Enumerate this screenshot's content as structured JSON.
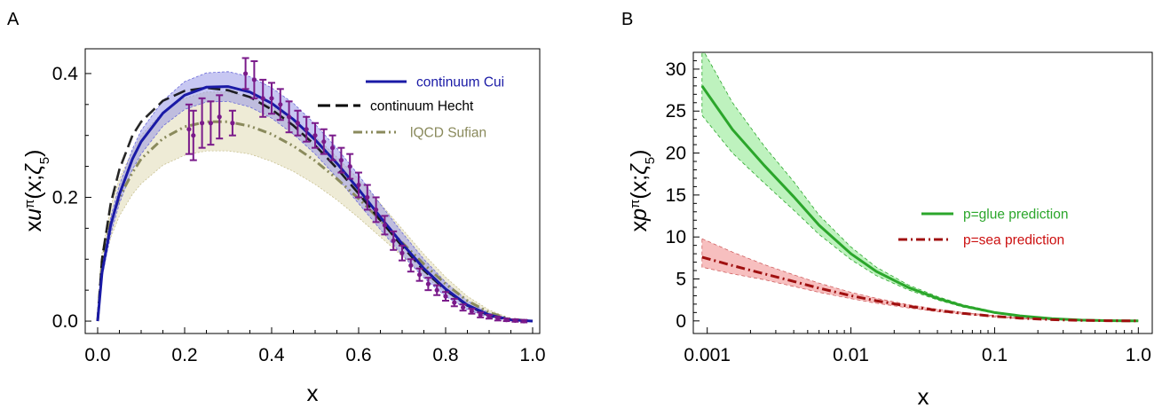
{
  "colors": {
    "cui": "#1a1aa6",
    "cui_band": "#8f8fe6",
    "hecht": "#000000",
    "sufian": "#8a8a5c",
    "sufian_band": "#e8e4c8",
    "lattice": "#7a1a8a",
    "glue": "#2ba62b",
    "glue_band": "#7ee67e",
    "sea": "#a01010",
    "sea_band": "#f08a8a"
  },
  "panels": {
    "A": {
      "letter": "A"
    },
    "B": {
      "letter": "B"
    }
  },
  "chart_data": [
    {
      "type": "line",
      "panel": "A",
      "xlabel": "x",
      "ylabel_parts": {
        "a": "x",
        "b": "u",
        "c": "π",
        "d": "(x;",
        "e": "ζ",
        "f": "5",
        "g": ")"
      },
      "xlim": [
        0,
        1
      ],
      "ylim": [
        -0.02,
        0.44
      ],
      "x_ticks": [
        0.0,
        0.2,
        0.4,
        0.6,
        0.8,
        1.0
      ],
      "x_tick_labels": [
        "0.0",
        "0.2",
        "0.4",
        "0.6",
        "0.8",
        "1.0"
      ],
      "y_ticks": [
        0.0,
        0.2,
        0.4
      ],
      "y_tick_labels": [
        "0.0",
        "0.2",
        "0.4"
      ],
      "legend_position": "top-right",
      "series": [
        {
          "name": "continuum Cui",
          "style": "solid",
          "x": [
            0.0,
            0.01,
            0.03,
            0.05,
            0.08,
            0.1,
            0.15,
            0.2,
            0.25,
            0.3,
            0.35,
            0.4,
            0.45,
            0.5,
            0.55,
            0.6,
            0.65,
            0.7,
            0.75,
            0.8,
            0.85,
            0.9,
            0.95,
            1.0
          ],
          "values": [
            0.0,
            0.078,
            0.155,
            0.205,
            0.262,
            0.29,
            0.336,
            0.365,
            0.378,
            0.379,
            0.37,
            0.352,
            0.326,
            0.293,
            0.255,
            0.213,
            0.168,
            0.125,
            0.085,
            0.052,
            0.026,
            0.01,
            0.002,
            0.0
          ],
          "band_low": [
            0.0,
            0.07,
            0.14,
            0.19,
            0.245,
            0.27,
            0.315,
            0.342,
            0.354,
            0.355,
            0.346,
            0.328,
            0.302,
            0.27,
            0.232,
            0.19,
            0.148,
            0.107,
            0.07,
            0.04,
            0.019,
            0.006,
            0.001,
            0.0
          ],
          "band_high": [
            0.0,
            0.086,
            0.168,
            0.22,
            0.278,
            0.308,
            0.356,
            0.387,
            0.401,
            0.403,
            0.395,
            0.377,
            0.352,
            0.318,
            0.279,
            0.236,
            0.189,
            0.143,
            0.1,
            0.063,
            0.033,
            0.013,
            0.003,
            0.0
          ]
        },
        {
          "name": "continuum Hecht",
          "style": "dashed",
          "x": [
            0.0,
            0.01,
            0.03,
            0.05,
            0.08,
            0.1,
            0.15,
            0.2,
            0.25,
            0.3,
            0.35,
            0.4,
            0.45,
            0.5,
            0.55,
            0.6,
            0.65,
            0.7,
            0.75,
            0.8,
            0.85,
            0.9,
            0.95,
            1.0
          ],
          "values": [
            0.0,
            0.1,
            0.19,
            0.245,
            0.3,
            0.322,
            0.356,
            0.372,
            0.377,
            0.373,
            0.362,
            0.342,
            0.316,
            0.284,
            0.247,
            0.206,
            0.163,
            0.121,
            0.082,
            0.05,
            0.025,
            0.009,
            0.002,
            0.0
          ]
        },
        {
          "name": "lQCD Sufian",
          "style": "dash-dot",
          "x": [
            0.0,
            0.01,
            0.03,
            0.05,
            0.08,
            0.1,
            0.15,
            0.2,
            0.25,
            0.3,
            0.35,
            0.4,
            0.45,
            0.5,
            0.55,
            0.6,
            0.65,
            0.7,
            0.75,
            0.8,
            0.85,
            0.9,
            0.95,
            1.0
          ],
          "values": [
            0.0,
            0.095,
            0.16,
            0.2,
            0.24,
            0.262,
            0.295,
            0.314,
            0.322,
            0.322,
            0.315,
            0.302,
            0.283,
            0.259,
            0.23,
            0.198,
            0.163,
            0.127,
            0.092,
            0.06,
            0.033,
            0.014,
            0.003,
            0.0
          ],
          "band_low": [
            0.0,
            0.08,
            0.135,
            0.17,
            0.205,
            0.222,
            0.252,
            0.268,
            0.275,
            0.275,
            0.27,
            0.258,
            0.242,
            0.221,
            0.196,
            0.167,
            0.136,
            0.105,
            0.074,
            0.046,
            0.024,
            0.009,
            0.002,
            0.0
          ],
          "band_high": [
            0.0,
            0.11,
            0.185,
            0.23,
            0.275,
            0.3,
            0.338,
            0.36,
            0.37,
            0.37,
            0.362,
            0.347,
            0.325,
            0.298,
            0.265,
            0.229,
            0.19,
            0.149,
            0.108,
            0.071,
            0.04,
            0.018,
            0.004,
            0.0
          ]
        },
        {
          "type": "scatter-errorbars",
          "x": [
            0.21,
            0.22,
            0.24,
            0.26,
            0.28,
            0.31,
            0.34,
            0.36,
            0.38,
            0.4,
            0.42,
            0.44,
            0.46,
            0.48,
            0.5,
            0.52,
            0.54,
            0.56,
            0.58,
            0.6,
            0.62,
            0.64,
            0.66,
            0.68,
            0.7,
            0.72,
            0.74,
            0.76,
            0.78,
            0.8,
            0.82,
            0.84,
            0.86,
            0.88,
            0.9,
            0.92,
            0.94,
            0.96,
            0.98
          ],
          "values": [
            0.31,
            0.3,
            0.32,
            0.32,
            0.33,
            0.32,
            0.4,
            0.39,
            0.36,
            0.36,
            0.35,
            0.33,
            0.32,
            0.31,
            0.3,
            0.29,
            0.28,
            0.26,
            0.25,
            0.22,
            0.2,
            0.18,
            0.155,
            0.13,
            0.11,
            0.09,
            0.075,
            0.06,
            0.05,
            0.04,
            0.03,
            0.022,
            0.016,
            0.01,
            0.007,
            0.004,
            0.002,
            0.001,
            0.0
          ],
          "errors": [
            0.04,
            0.04,
            0.04,
            0.035,
            0.035,
            0.02,
            0.025,
            0.03,
            0.03,
            0.025,
            0.025,
            0.025,
            0.02,
            0.02,
            0.02,
            0.02,
            0.02,
            0.02,
            0.02,
            0.02,
            0.02,
            0.02,
            0.015,
            0.015,
            0.012,
            0.01,
            0.01,
            0.01,
            0.008,
            0.007,
            0.006,
            0.005,
            0.004,
            0.004,
            0.003,
            0.003,
            0.002,
            0.002,
            0.002
          ]
        }
      ]
    },
    {
      "type": "line",
      "panel": "B",
      "xlabel": "x",
      "ylabel_parts": {
        "a": "x",
        "b": "p",
        "c": "π",
        "d": "(x;",
        "e": "ζ",
        "f": "5",
        "g": ")"
      },
      "x_scale": "log",
      "xlim": [
        0.0008,
        1.25
      ],
      "ylim": [
        -1.5,
        32
      ],
      "x_ticks": [
        0.001,
        0.01,
        0.1,
        1.0
      ],
      "x_tick_labels": [
        "0.001",
        "0.01",
        "0.1",
        "1.0"
      ],
      "y_ticks": [
        0,
        5,
        10,
        15,
        20,
        25,
        30
      ],
      "y_tick_labels": [
        "0",
        "5",
        "10",
        "15",
        "20",
        "25",
        "30"
      ],
      "legend_position": "right",
      "series": [
        {
          "name": "p=glue prediction",
          "style": "solid",
          "x": [
            0.00092,
            0.0015,
            0.0025,
            0.004,
            0.006,
            0.01,
            0.015,
            0.025,
            0.04,
            0.06,
            0.1,
            0.15,
            0.25,
            0.4,
            0.6,
            1.0
          ],
          "values": [
            28.0,
            22.8,
            18.5,
            14.8,
            11.4,
            8.0,
            5.9,
            4.0,
            2.7,
            1.8,
            1.0,
            0.6,
            0.28,
            0.1,
            0.03,
            0.0
          ],
          "band_low": [
            24.5,
            20.0,
            16.4,
            13.2,
            10.3,
            7.3,
            5.4,
            3.7,
            2.5,
            1.65,
            0.9,
            0.52,
            0.24,
            0.08,
            0.02,
            0.0
          ],
          "band_high": [
            32.5,
            26.0,
            20.8,
            16.6,
            12.6,
            8.8,
            6.4,
            4.3,
            2.9,
            1.95,
            1.1,
            0.68,
            0.32,
            0.12,
            0.04,
            0.0
          ]
        },
        {
          "name": "p=sea prediction",
          "style": "dash-dot",
          "x": [
            0.00092,
            0.0015,
            0.0025,
            0.004,
            0.006,
            0.01,
            0.015,
            0.025,
            0.04,
            0.06,
            0.1,
            0.15,
            0.25,
            0.4,
            0.6,
            1.0
          ],
          "values": [
            7.6,
            6.6,
            5.6,
            4.7,
            3.9,
            3.0,
            2.4,
            1.75,
            1.25,
            0.9,
            0.55,
            0.33,
            0.15,
            0.06,
            0.02,
            0.0
          ],
          "band_low": [
            6.4,
            5.6,
            4.9,
            4.1,
            3.4,
            2.65,
            2.1,
            1.55,
            1.1,
            0.78,
            0.48,
            0.28,
            0.12,
            0.05,
            0.015,
            0.0
          ],
          "band_high": [
            9.8,
            8.2,
            6.7,
            5.5,
            4.5,
            3.4,
            2.7,
            1.95,
            1.4,
            1.0,
            0.62,
            0.38,
            0.18,
            0.07,
            0.025,
            0.0
          ]
        }
      ]
    }
  ]
}
